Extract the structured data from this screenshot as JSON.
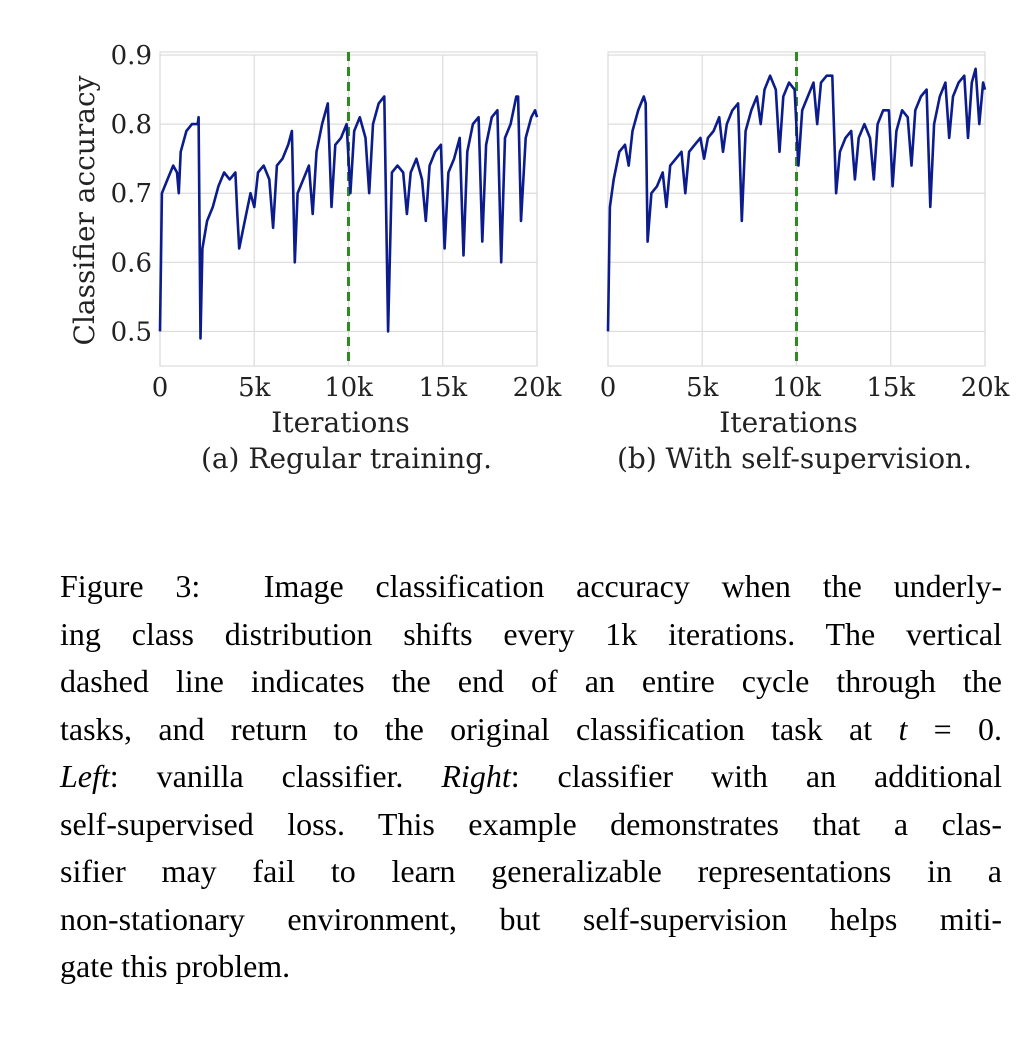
{
  "chart_data": [
    {
      "type": "line",
      "ylabel": "Classifier accuracy",
      "xlabel": "Iterations",
      "caption": "(a) Regular training.",
      "x": [
        0,
        100,
        400,
        700,
        900,
        1000,
        1100,
        1400,
        1700,
        2000,
        2050,
        2150,
        2250,
        2500,
        2800,
        3100,
        3400,
        3700,
        4000,
        4100,
        4200,
        4500,
        4800,
        5000,
        5200,
        5500,
        5800,
        6000,
        6200,
        6500,
        6800,
        7000,
        7150,
        7300,
        7600,
        7900,
        8100,
        8300,
        8600,
        8900,
        9100,
        9300,
        9600,
        9900,
        10100,
        10300,
        10600,
        10900,
        11100,
        11300,
        11600,
        11900,
        12100,
        12300,
        12600,
        12900,
        13100,
        13300,
        13600,
        13900,
        14100,
        14300,
        14600,
        14900,
        15100,
        15300,
        15600,
        15900,
        16100,
        16300,
        16600,
        16900,
        17100,
        17300,
        17600,
        17900,
        18100,
        18300,
        18600,
        18900,
        19000,
        19150,
        19400,
        19700,
        19900,
        20000
      ],
      "series": [
        {
          "color": "#0c1c8c",
          "values": [
            0.5,
            0.7,
            0.72,
            0.74,
            0.73,
            0.7,
            0.76,
            0.79,
            0.8,
            0.8,
            0.81,
            0.49,
            0.62,
            0.66,
            0.68,
            0.71,
            0.73,
            0.72,
            0.73,
            0.67,
            0.62,
            0.66,
            0.7,
            0.68,
            0.73,
            0.74,
            0.72,
            0.65,
            0.74,
            0.75,
            0.77,
            0.79,
            0.6,
            0.7,
            0.72,
            0.74,
            0.67,
            0.76,
            0.8,
            0.83,
            0.68,
            0.77,
            0.78,
            0.8,
            0.7,
            0.79,
            0.81,
            0.78,
            0.7,
            0.8,
            0.83,
            0.84,
            0.5,
            0.73,
            0.74,
            0.73,
            0.67,
            0.73,
            0.75,
            0.72,
            0.66,
            0.74,
            0.76,
            0.77,
            0.62,
            0.73,
            0.75,
            0.78,
            0.61,
            0.76,
            0.8,
            0.81,
            0.63,
            0.77,
            0.81,
            0.82,
            0.6,
            0.78,
            0.8,
            0.84,
            0.84,
            0.66,
            0.78,
            0.81,
            0.82,
            0.81
          ]
        }
      ],
      "xlim": [
        0,
        20000
      ],
      "ylim": [
        0.45,
        0.9
      ],
      "xticks": [
        0,
        {
          "value": 5000,
          "label": "5k"
        },
        {
          "value": 10000,
          "label": "10k"
        },
        {
          "value": 15000,
          "label": "15k"
        },
        {
          "value": 20000,
          "label": "20k"
        }
      ],
      "yticks": [
        0.5,
        0.6,
        0.7,
        0.8,
        0.9
      ],
      "grid": true,
      "vline": {
        "x": 10000,
        "color": "#2e8b22"
      }
    },
    {
      "type": "line",
      "xlabel": "Iterations",
      "caption": "(b) With self-supervision.",
      "x": [
        0,
        100,
        300,
        600,
        900,
        1100,
        1300,
        1600,
        1900,
        2000,
        2100,
        2300,
        2600,
        2900,
        3100,
        3300,
        3600,
        3900,
        4100,
        4300,
        4600,
        4900,
        5100,
        5300,
        5600,
        5900,
        6100,
        6300,
        6600,
        6900,
        7100,
        7300,
        7600,
        7900,
        8100,
        8300,
        8600,
        8900,
        9100,
        9300,
        9600,
        9900,
        10100,
        10300,
        10600,
        10900,
        11100,
        11300,
        11600,
        11900,
        12100,
        12300,
        12600,
        12900,
        13100,
        13300,
        13600,
        13900,
        14100,
        14300,
        14600,
        14900,
        15100,
        15300,
        15600,
        15900,
        16100,
        16300,
        16600,
        16900,
        17100,
        17300,
        17600,
        17900,
        18100,
        18300,
        18600,
        18900,
        19100,
        19300,
        19500,
        19700,
        19900,
        20000
      ],
      "series": [
        {
          "color": "#0c1c8c",
          "values": [
            0.5,
            0.68,
            0.72,
            0.76,
            0.77,
            0.74,
            0.79,
            0.82,
            0.84,
            0.83,
            0.63,
            0.7,
            0.71,
            0.73,
            0.68,
            0.74,
            0.75,
            0.76,
            0.7,
            0.76,
            0.77,
            0.78,
            0.75,
            0.78,
            0.79,
            0.81,
            0.76,
            0.8,
            0.82,
            0.83,
            0.66,
            0.79,
            0.82,
            0.84,
            0.8,
            0.85,
            0.87,
            0.85,
            0.76,
            0.84,
            0.86,
            0.85,
            0.74,
            0.82,
            0.84,
            0.86,
            0.8,
            0.86,
            0.87,
            0.87,
            0.7,
            0.76,
            0.78,
            0.79,
            0.72,
            0.78,
            0.8,
            0.78,
            0.72,
            0.8,
            0.82,
            0.82,
            0.71,
            0.79,
            0.82,
            0.81,
            0.74,
            0.82,
            0.84,
            0.85,
            0.68,
            0.8,
            0.84,
            0.86,
            0.78,
            0.84,
            0.86,
            0.87,
            0.78,
            0.86,
            0.88,
            0.8,
            0.86,
            0.85
          ]
        }
      ],
      "xlim": [
        0,
        20000
      ],
      "ylim": [
        0.45,
        0.9
      ],
      "xticks": [
        0,
        {
          "value": 5000,
          "label": "5k"
        },
        {
          "value": 10000,
          "label": "10k"
        },
        {
          "value": 15000,
          "label": "15k"
        },
        {
          "value": 20000,
          "label": "20k"
        }
      ],
      "sharey": true,
      "grid": true,
      "vline": {
        "x": 10000,
        "color": "#2e8b22"
      }
    }
  ],
  "figure_caption": {
    "lines": [
      [
        {
          "text": "Figure 3:  Image classification accuracy when the underly-"
        }
      ],
      [
        {
          "text": "ing class distribution shifts every 1k iterations. The vertical"
        }
      ],
      [
        {
          "text": "dashed line indicates the end of an entire cycle through the"
        }
      ],
      [
        {
          "text": "tasks, and return to the original classification task at "
        },
        {
          "text": "t",
          "italic": true
        },
        {
          "text": " = 0."
        }
      ],
      [
        {
          "text": "Left",
          "italic": true
        },
        {
          "text": ": vanilla classifier. "
        },
        {
          "text": "Right",
          "italic": true
        },
        {
          "text": ": classifier with an additional"
        }
      ],
      [
        {
          "text": "self-supervised loss. This example demonstrates that a clas-"
        }
      ],
      [
        {
          "text": "sifier may fail to learn generalizable representations in a"
        }
      ],
      [
        {
          "text": "non-stationary environment, but self-supervision helps miti-"
        }
      ],
      [
        {
          "text": "gate this problem."
        }
      ]
    ]
  }
}
